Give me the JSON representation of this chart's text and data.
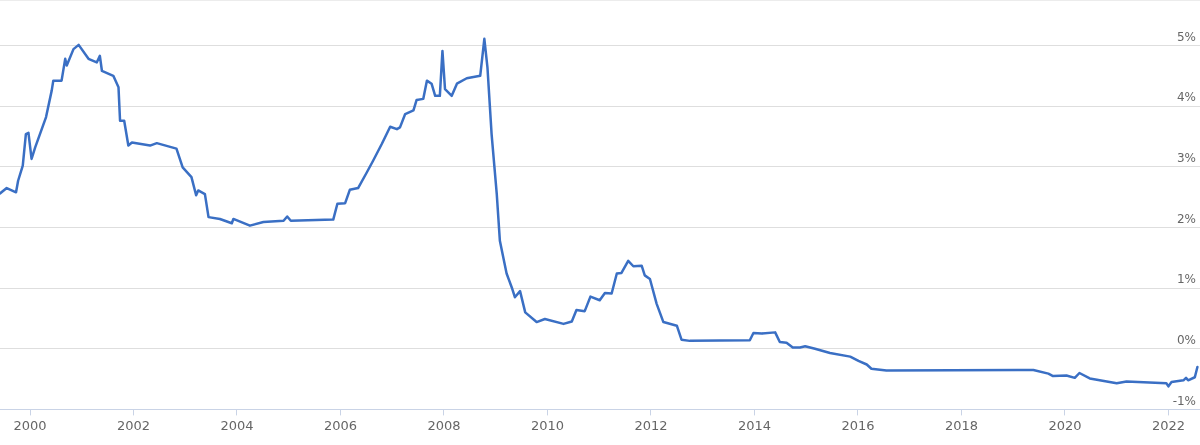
{
  "chart_data": {
    "type": "line",
    "x": [
      1999.42,
      1999.55,
      1999.73,
      1999.77,
      1999.86,
      1999.92,
      1999.97,
      2000.03,
      2000.1,
      2000.31,
      2000.42,
      2000.45,
      2000.61,
      2000.68,
      2000.71,
      2000.84,
      2000.94,
      2001.13,
      2001.29,
      2001.35,
      2001.39,
      2001.61,
      2001.71,
      2001.74,
      2001.82,
      2001.9,
      2001.97,
      2002.32,
      2002.45,
      2002.83,
      2002.95,
      2003.12,
      2003.21,
      2003.25,
      2003.38,
      2003.45,
      2003.67,
      2003.9,
      2003.93,
      2004.25,
      2004.51,
      2004.9,
      2004.97,
      2005.04,
      2005.86,
      2005.94,
      2006.09,
      2006.18,
      2006.34,
      2006.51,
      2006.63,
      2006.8,
      2006.96,
      2007.09,
      2007.15,
      2007.25,
      2007.41,
      2007.47,
      2007.6,
      2007.67,
      2007.76,
      2007.83,
      2007.92,
      2007.97,
      2008.02,
      2008.15,
      2008.25,
      2008.44,
      2008.7,
      2008.78,
      2008.84,
      2008.92,
      2009.02,
      2009.08,
      2009.21,
      2009.31,
      2009.37,
      2009.47,
      2009.57,
      2009.79,
      2009.95,
      2010.31,
      2010.47,
      2010.56,
      2010.72,
      2010.83,
      2011.01,
      2011.11,
      2011.24,
      2011.34,
      2011.43,
      2011.56,
      2011.66,
      2011.82,
      2011.88,
      2011.98,
      2012.11,
      2012.24,
      2012.5,
      2012.59,
      2012.75,
      2013.91,
      2013.98,
      2014.14,
      2014.4,
      2014.49,
      2014.62,
      2014.74,
      2014.88,
      2014.98,
      2015.17,
      2015.46,
      2015.85,
      2016.01,
      2016.17,
      2016.26,
      2016.55,
      2019.39,
      2019.68,
      2019.77,
      2020.03,
      2020.19,
      2020.28,
      2020.48,
      2021.0,
      2021.19,
      2021.96,
      2022.0,
      2022.06,
      2022.29,
      2022.34,
      2022.38,
      2022.51,
      2022.56
    ],
    "series": [
      {
        "color": "#3a6fc4",
        "values": [
          2.56,
          2.65,
          2.58,
          2.77,
          3.02,
          3.54,
          3.56,
          3.13,
          3.32,
          3.82,
          4.26,
          4.42,
          4.42,
          4.78,
          4.67,
          4.94,
          5.01,
          4.78,
          4.72,
          4.83,
          4.58,
          4.5,
          4.31,
          3.76,
          3.76,
          3.35,
          3.4,
          3.35,
          3.39,
          3.3,
          2.99,
          2.83,
          2.53,
          2.61,
          2.55,
          2.17,
          2.14,
          2.07,
          2.14,
          2.03,
          2.09,
          2.11,
          2.18,
          2.11,
          2.13,
          2.39,
          2.4,
          2.62,
          2.65,
          2.91,
          3.1,
          3.38,
          3.66,
          3.62,
          3.65,
          3.87,
          3.93,
          4.1,
          4.12,
          4.42,
          4.37,
          4.17,
          4.17,
          4.91,
          4.28,
          4.17,
          4.37,
          4.46,
          4.5,
          5.11,
          4.64,
          3.54,
          2.55,
          1.78,
          1.24,
          1.01,
          0.85,
          0.95,
          0.6,
          0.44,
          0.49,
          0.41,
          0.45,
          0.64,
          0.62,
          0.86,
          0.8,
          0.92,
          0.91,
          1.24,
          1.25,
          1.45,
          1.36,
          1.37,
          1.21,
          1.15,
          0.74,
          0.44,
          0.38,
          0.15,
          0.13,
          0.14,
          0.26,
          0.25,
          0.27,
          0.11,
          0.1,
          0.02,
          0.02,
          0.04,
          0.0,
          -0.07,
          -0.13,
          -0.2,
          -0.26,
          -0.33,
          -0.36,
          -0.35,
          -0.41,
          -0.45,
          -0.44,
          -0.48,
          -0.4,
          -0.49,
          -0.57,
          -0.54,
          -0.57,
          -0.62,
          -0.55,
          -0.52,
          -0.48,
          -0.52,
          -0.47,
          -0.3
        ]
      }
    ],
    "xlim": [
      1999.42,
      2022.61
    ],
    "xticks": [
      2000,
      2002,
      2004,
      2006,
      2008,
      2010,
      2012,
      2014,
      2016,
      2018,
      2020,
      2022
    ],
    "ylim": [
      -1,
      5.75
    ],
    "yticks": [
      {
        "value": -1,
        "label": "-1%"
      },
      {
        "value": 0,
        "label": "0%"
      },
      {
        "value": 1,
        "label": "1%"
      },
      {
        "value": 2,
        "label": "2%"
      },
      {
        "value": 3,
        "label": "3%"
      },
      {
        "value": 4,
        "label": "4%"
      },
      {
        "value": 5,
        "label": "5%"
      }
    ],
    "grid": "y",
    "legend": false,
    "marker": "none",
    "line_style": "solid"
  }
}
